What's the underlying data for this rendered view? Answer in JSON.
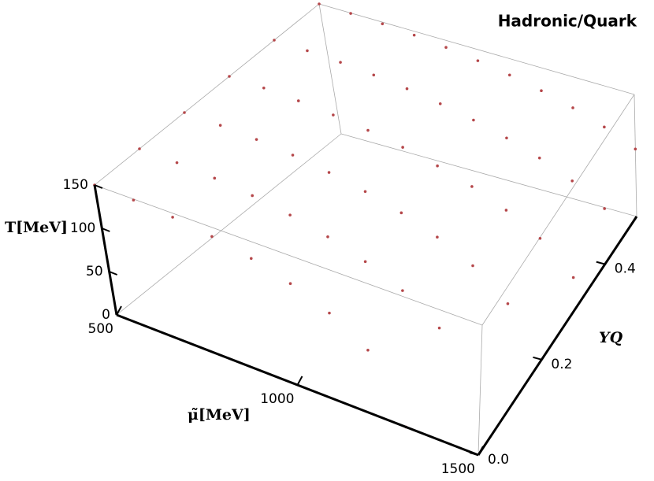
{
  "chart_data": {
    "type": "scatter3d",
    "title": "Hadronic/Quark",
    "xlabel": "μ̃[MeV]",
    "ylabel": "YQ",
    "zlabel": "T[MeV]",
    "color": "#b5474a",
    "xlim": [
      500,
      1500
    ],
    "ylim": [
      0,
      0.5
    ],
    "zlim": [
      0,
      150
    ],
    "xticks": [
      500,
      1000,
      1500
    ],
    "yticks": [
      {
        "value": 0,
        "label": "0.0"
      },
      0.2,
      0.4
    ],
    "zticks": [
      0,
      50,
      100,
      150
    ],
    "x": [
      500,
      600,
      700,
      800,
      900,
      1000,
      1100,
      1200,
      1300,
      500,
      600,
      700,
      800,
      900,
      1000,
      1100,
      1200,
      1300,
      500,
      600,
      700,
      800,
      900,
      1000,
      1100,
      1200,
      1300,
      1400,
      500,
      600,
      700,
      800,
      900,
      1000,
      1100,
      1200,
      1300,
      1400,
      1500,
      500,
      600,
      700,
      800,
      900,
      1000,
      1100,
      1200,
      1300,
      1400,
      1500,
      500,
      600,
      700,
      800,
      900,
      1000,
      1100,
      1200,
      1300,
      1400,
      1500
    ],
    "y": [
      0,
      0,
      0,
      0,
      0,
      0,
      0,
      0,
      0,
      0.1,
      0.1,
      0.1,
      0.1,
      0.1,
      0.1,
      0.1,
      0.1,
      0.1,
      0.2,
      0.2,
      0.2,
      0.2,
      0.2,
      0.2,
      0.2,
      0.2,
      0.2,
      0.2,
      0.3,
      0.3,
      0.3,
      0.3,
      0.3,
      0.3,
      0.3,
      0.3,
      0.3,
      0.3,
      0.3,
      0.4,
      0.4,
      0.4,
      0.4,
      0.4,
      0.4,
      0.4,
      0.4,
      0.4,
      0.4,
      0.4,
      0.5,
      0.5,
      0.5,
      0.5,
      0.5,
      0.5,
      0.5,
      0.5,
      0.5,
      0.5,
      0.5
    ],
    "z": [
      150,
      148.8,
      145.2,
      139.1,
      129.9,
      117.1,
      99.2,
      72.6,
      0,
      150,
      149.0,
      146.1,
      141.0,
      133.6,
      123.4,
      109.7,
      91.0,
      62.5,
      150,
      149.2,
      146.7,
      142.5,
      136.3,
      128.0,
      117.1,
      102.6,
      83.0,
      52.2,
      150,
      149.3,
      147.2,
      143.6,
      138.5,
      131.5,
      122.5,
      111.0,
      95.9,
      75.2,
      41.2,
      150,
      149.4,
      147.6,
      144.5,
      140.1,
      134.2,
      126.6,
      117.1,
      105.0,
      89.2,
      67.5,
      150,
      149.5,
      147.9,
      145.2,
      141.4,
      136.3,
      129.9,
      121.8,
      111.8,
      99.2,
      82.9
    ]
  }
}
